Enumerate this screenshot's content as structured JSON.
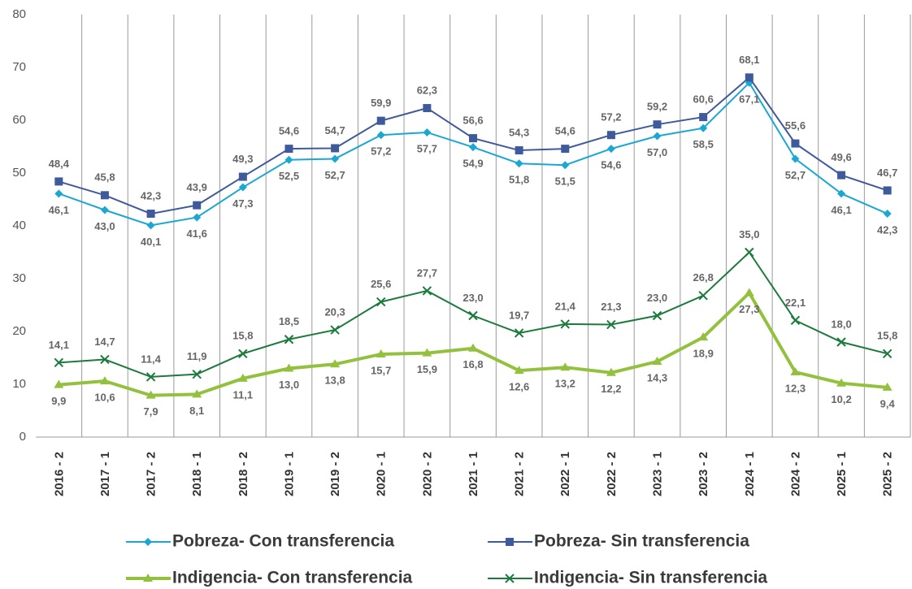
{
  "chart_data": {
    "type": "line",
    "categories": [
      "2016 - 2",
      "2017 - 1",
      "2017 - 2",
      "2018 - 1",
      "2018 - 2",
      "2019 - 1",
      "2019 - 2",
      "2020 - 1",
      "2020 - 2",
      "2021 - 1",
      "2021 - 2",
      "2022 - 1",
      "2022 - 2",
      "2023 - 1",
      "2023 - 2",
      "2024 - 1",
      "2024 - 2",
      "2025 - 1",
      "2025 - 2"
    ],
    "ylim": [
      0,
      80
    ],
    "yticks": [
      0,
      10,
      20,
      30,
      40,
      50,
      60,
      70,
      80
    ],
    "series": [
      {
        "name": "Pobreza- Con transferencia",
        "color": "#1aa7d4",
        "marker": "diamond",
        "label_position": "below",
        "values": [
          46.1,
          43.0,
          40.1,
          41.6,
          47.3,
          52.5,
          52.7,
          57.2,
          57.7,
          54.9,
          51.8,
          51.5,
          54.6,
          57.0,
          58.5,
          67.1,
          52.7,
          46.1,
          42.3
        ],
        "value_labels": [
          "46,1",
          "43,0",
          "40,1",
          "41,6",
          "47,3",
          "52,5",
          "52,7",
          "57,2",
          "57,7",
          "54,9",
          "51,8",
          "51,5",
          "54,6",
          "57,0",
          "58,5",
          "67,1",
          "52,7",
          "46,1",
          "42,3"
        ]
      },
      {
        "name": "Pobreza- Sin transferencia",
        "color": "#3e5a9b",
        "marker": "square",
        "label_position": "above",
        "values": [
          48.4,
          45.8,
          42.3,
          43.9,
          49.3,
          54.6,
          54.7,
          59.9,
          62.3,
          56.6,
          54.3,
          54.6,
          57.2,
          59.2,
          60.6,
          68.1,
          55.6,
          49.6,
          46.7
        ],
        "value_labels": [
          "48,4",
          "45,8",
          "42,3",
          "43,9",
          "49,3",
          "54,6",
          "54,7",
          "59,9",
          "62,3",
          "56,6",
          "54,3",
          "54,6",
          "57,2",
          "59,2",
          "60,6",
          "68,1",
          "55,6",
          "49,6",
          "46,7"
        ]
      },
      {
        "name": "Indigencia- Con transferencia",
        "color": "#93c13e",
        "marker": "triangle",
        "label_position": "below",
        "values": [
          9.9,
          10.6,
          7.9,
          8.1,
          11.1,
          13.0,
          13.8,
          15.7,
          15.9,
          16.8,
          12.6,
          13.2,
          12.2,
          14.3,
          18.9,
          27.3,
          12.3,
          10.2,
          9.4
        ],
        "value_labels": [
          "9,9",
          "10,6",
          "7,9",
          "8,1",
          "11,1",
          "13,0",
          "13,8",
          "15,7",
          "15,9",
          "16,8",
          "12,6",
          "13,2",
          "12,2",
          "14,3",
          "18,9",
          "27,3",
          "12,3",
          "10,2",
          "9,4"
        ]
      },
      {
        "name": "Indigencia- Sin transferencia",
        "color": "#1b7a3c",
        "marker": "x",
        "label_position": "above",
        "values": [
          14.1,
          14.7,
          11.4,
          11.9,
          15.8,
          18.5,
          20.3,
          25.6,
          27.7,
          23.0,
          19.7,
          21.4,
          21.3,
          23.0,
          26.8,
          35.0,
          22.1,
          18.0,
          15.8
        ],
        "value_labels": [
          "14,1",
          "14,7",
          "11,4",
          "11,9",
          "15,8",
          "18,5",
          "20,3",
          "25,6",
          "27,7",
          "23,0",
          "19,7",
          "21,4",
          "21,3",
          "23,0",
          "26,8",
          "35,0",
          "22,1",
          "18,0",
          "15,8"
        ]
      }
    ]
  }
}
